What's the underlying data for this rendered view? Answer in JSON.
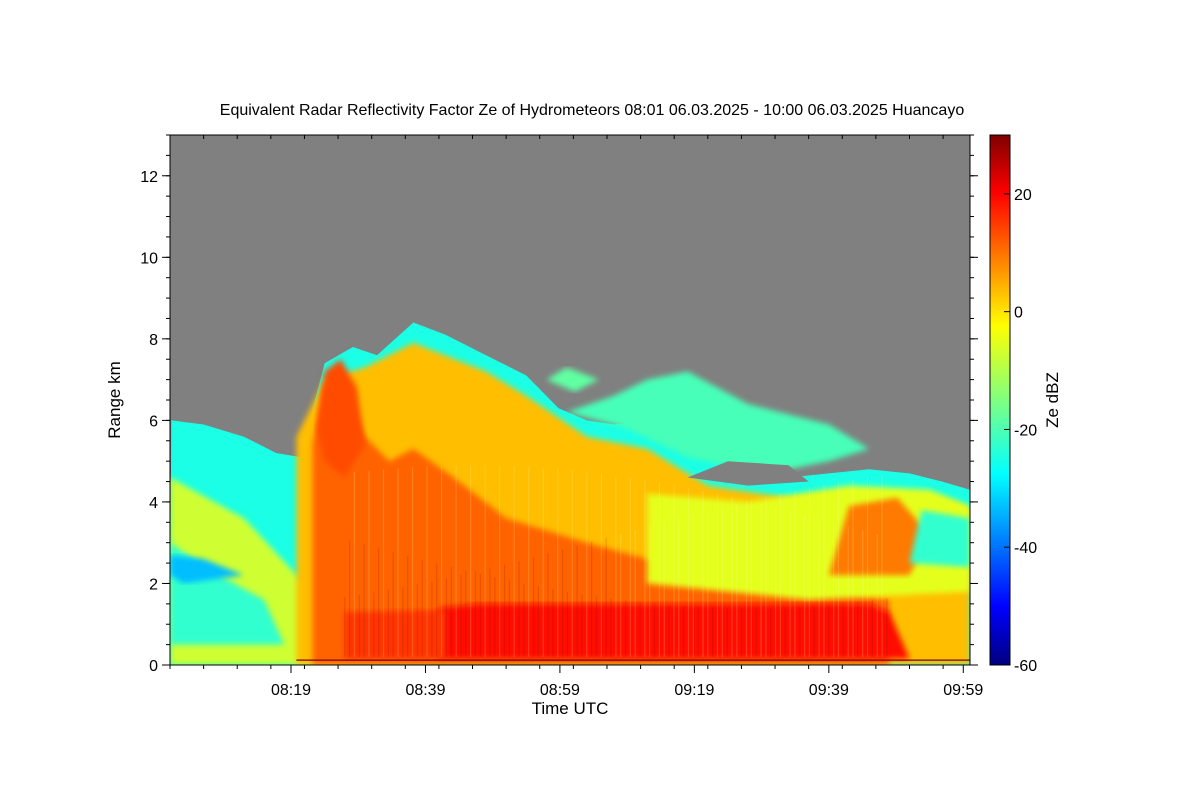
{
  "chart_data": {
    "type": "heatmap",
    "title": "Equivalent Radar Reflectivity Factor Ze of Hydrometeors   08:01 06.03.2025 - 10:00 06.03.2025 Huancayo",
    "xlabel": "Time UTC",
    "ylabel": "Range km",
    "x_range": [
      "08:01",
      "10:00"
    ],
    "x_ticks": [
      "08:19",
      "08:39",
      "08:59",
      "09:19",
      "09:39",
      "09:59"
    ],
    "ylim": [
      0,
      13
    ],
    "y_ticks": [
      0,
      2,
      4,
      6,
      8,
      10,
      12
    ],
    "colorbar": {
      "label": "Ze dBZ",
      "range": [
        -60,
        30
      ],
      "ticks": [
        20,
        0,
        -20,
        -40,
        -60
      ],
      "colormap": "jet"
    },
    "no_data_color": "#808080",
    "cloud_top_km": [
      [
        8.02,
        6.0
      ],
      [
        8.1,
        5.9
      ],
      [
        8.2,
        5.6
      ],
      [
        8.28,
        5.2
      ],
      [
        8.34,
        5.1
      ],
      [
        8.4,
        7.4
      ],
      [
        8.47,
        7.8
      ],
      [
        8.53,
        7.6
      ],
      [
        8.62,
        8.4
      ],
      [
        8.7,
        8.1
      ],
      [
        8.8,
        7.6
      ],
      [
        8.9,
        7.1
      ],
      [
        8.98,
        6.3
      ],
      [
        9.05,
        6.0
      ],
      [
        9.12,
        5.9
      ],
      [
        9.2,
        6.0
      ],
      [
        9.28,
        5.9
      ],
      [
        9.36,
        5.8
      ],
      [
        9.45,
        5.3
      ],
      [
        9.55,
        4.6
      ],
      [
        9.65,
        4.7
      ],
      [
        9.75,
        4.8
      ],
      [
        9.85,
        4.7
      ],
      [
        9.93,
        4.5
      ],
      [
        10.0,
        4.3
      ]
    ],
    "cirrus_layer": {
      "start": "09:07",
      "end": "09:47",
      "base_km": 4.6,
      "top_km": 7.3,
      "ze_dbz": -20
    },
    "rain_layer": {
      "start": "08:41",
      "end": "09:48",
      "top_km": 1.5,
      "ze_dbz": 18
    },
    "core_region": {
      "start": "08:27",
      "end": "09:18",
      "ze_dbz": 8
    },
    "early_cloud": {
      "start": "08:01",
      "end": "08:27",
      "ze_dbz": -22
    }
  }
}
